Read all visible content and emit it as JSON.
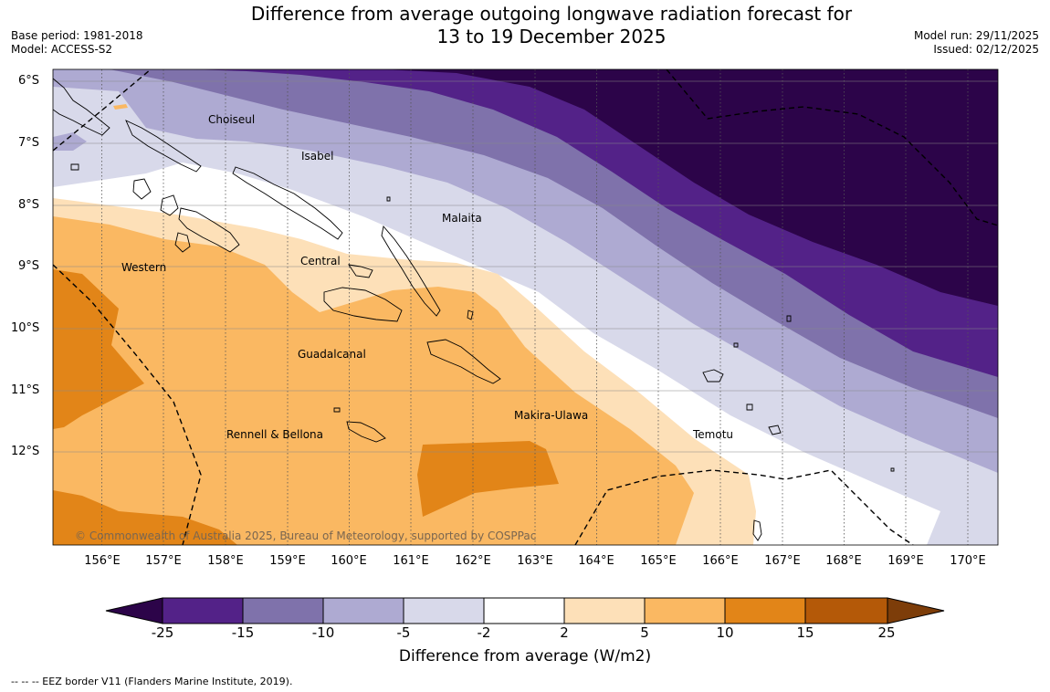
{
  "title": {
    "line1": "Difference from average outgoing longwave radiation forecast for",
    "line2": "13 to 19 December 2025"
  },
  "meta_left": {
    "base_period": "Base period: 1981-2018",
    "model": "Model: ACCESS-S2"
  },
  "meta_right": {
    "model_run": "Model run: 29/11/2025",
    "issued": "Issued: 02/12/2025"
  },
  "map": {
    "latitudes": [
      "6°S",
      "7°S",
      "8°S",
      "9°S",
      "10°S",
      "11°S",
      "12°S"
    ],
    "longitudes": [
      "156°E",
      "157°E",
      "158°E",
      "159°E",
      "160°E",
      "161°E",
      "162°E",
      "163°E",
      "164°E",
      "165°E",
      "166°E",
      "167°E",
      "168°E",
      "169°E",
      "170°E"
    ],
    "places": {
      "choiseul": "Choiseul",
      "isabel": "Isabel",
      "malaita": "Malaita",
      "central": "Central",
      "western": "Western",
      "guadalcanal": "Guadalcanal",
      "makira": "Makira-Ulawa",
      "rennell": "Rennell & Bellona",
      "temotu": "Temotu"
    },
    "copyright": "© Commonwealth of Australia 2025, Bureau of Meteorology, supported by COSPPac"
  },
  "colorbar": {
    "ticks": [
      "-25",
      "-15",
      "-10",
      "-5",
      "-2",
      "2",
      "5",
      "10",
      "15",
      "25"
    ],
    "colors": {
      "below_min": "#2c0449",
      "c1": "#532288",
      "c2": "#7f72ab",
      "c3": "#aeaad2",
      "c4": "#d8d9ea",
      "c5": "#ffffff",
      "c6": "#fde0b8",
      "c7": "#fab862",
      "c8": "#e28518",
      "c9": "#b45908",
      "above_max": "#7d3d09"
    },
    "label": "Difference from average (W/m2)"
  },
  "footer": "--  --  -- EEZ border V11 (Flanders Marine Institute, 2019)."
}
